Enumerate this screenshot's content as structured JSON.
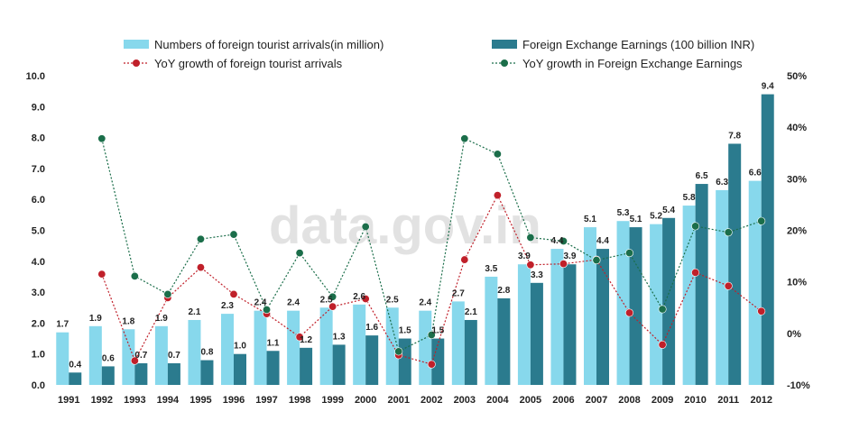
{
  "watermark": "data.gov.in",
  "colors": {
    "arrivals_bar": "#87d8ec",
    "earnings_bar": "#2b7b8e",
    "arrivals_growth": "#c0202a",
    "earnings_growth": "#1b6e4a"
  },
  "chart_data": {
    "type": "bar",
    "categories": [
      "1991",
      "1992",
      "1993",
      "1994",
      "1995",
      "1996",
      "1997",
      "1998",
      "1999",
      "2000",
      "2001",
      "2002",
      "2003",
      "2004",
      "2005",
      "2006",
      "2007",
      "2008",
      "2009",
      "2010",
      "2011",
      "2012"
    ],
    "ylim": [
      0,
      10
    ],
    "y2lim": [
      -10,
      50
    ],
    "y_ticks": [
      "0.0",
      "1.0",
      "2.0",
      "3.0",
      "4.0",
      "5.0",
      "6.0",
      "7.0",
      "8.0",
      "9.0",
      "10.0"
    ],
    "y2_ticks": [
      "-10%",
      "0%",
      "10%",
      "20%",
      "30%",
      "40%",
      "50%"
    ],
    "legend_position": "top",
    "grid": false,
    "series": [
      {
        "name": "Numbers of foreign tourist arrivals(in million)",
        "type": "bar",
        "axis": "left",
        "values": [
          1.7,
          1.9,
          1.8,
          1.9,
          2.1,
          2.3,
          2.4,
          2.4,
          2.5,
          2.6,
          2.5,
          2.4,
          2.7,
          3.5,
          3.9,
          4.4,
          5.1,
          5.3,
          5.2,
          5.8,
          6.3,
          6.6
        ],
        "labels": [
          "1.7",
          "1.9",
          "1.8",
          "1.9",
          "2.1",
          "2.3",
          "2.4",
          "2.4",
          "2.5",
          "2.6",
          "2.5",
          "2.4",
          "2.7",
          "3.5",
          "3.9",
          "4.4",
          "5.1",
          "5.3",
          "5.2",
          "5.8",
          "6.3",
          "6.6"
        ]
      },
      {
        "name": "Foreign Exchange Earnings (100 billion INR)",
        "type": "bar",
        "axis": "left",
        "values": [
          0.4,
          0.6,
          0.7,
          0.7,
          0.8,
          1.0,
          1.1,
          1.2,
          1.3,
          1.6,
          1.5,
          1.5,
          2.1,
          2.8,
          3.3,
          3.9,
          4.4,
          5.1,
          5.4,
          6.5,
          7.8,
          9.4
        ],
        "labels": [
          "0.4",
          "0.6",
          "0.7",
          "0.7",
          "0.8",
          "1.0",
          "1.1",
          "1.2",
          "1.3",
          "1.6",
          "1.5",
          "1.5",
          "2.1",
          "2.8",
          "3.3",
          "3.9",
          "4.4",
          "5.1",
          "5.4",
          "6.5",
          "7.8",
          "9.4"
        ]
      },
      {
        "name": "YoY growth of foreign tourist arrivals",
        "type": "line",
        "axis": "right",
        "values": [
          null,
          11.5,
          -5.3,
          6.9,
          12.8,
          7.6,
          3.8,
          -0.7,
          5.2,
          6.7,
          -4.2,
          -6.0,
          14.3,
          26.8,
          13.3,
          13.5,
          14.3,
          4.0,
          -2.2,
          11.8,
          9.2,
          4.3
        ]
      },
      {
        "name": "YoY growth in Foreign Exchange Earnings",
        "type": "line",
        "axis": "right",
        "values": [
          null,
          37.8,
          11.1,
          7.6,
          18.3,
          19.2,
          4.6,
          15.6,
          7.1,
          20.7,
          -3.5,
          -0.3,
          37.8,
          34.8,
          18.6,
          17.9,
          14.2,
          15.6,
          4.7,
          20.8,
          19.6,
          21.8
        ]
      }
    ]
  }
}
